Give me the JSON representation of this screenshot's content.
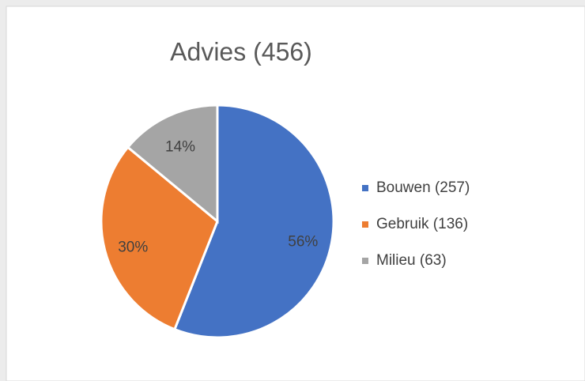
{
  "chart_data": {
    "type": "pie",
    "title": "Advies (456)",
    "categories": [
      "Bouwen (257)",
      "Gebruik (136)",
      "Milieu (63)"
    ],
    "values": [
      56,
      30,
      14
    ],
    "value_labels": [
      "56%",
      "30%",
      "14%"
    ],
    "colors": [
      "#4472c4",
      "#ed7d31",
      "#a5a5a5"
    ],
    "legend": "right"
  }
}
